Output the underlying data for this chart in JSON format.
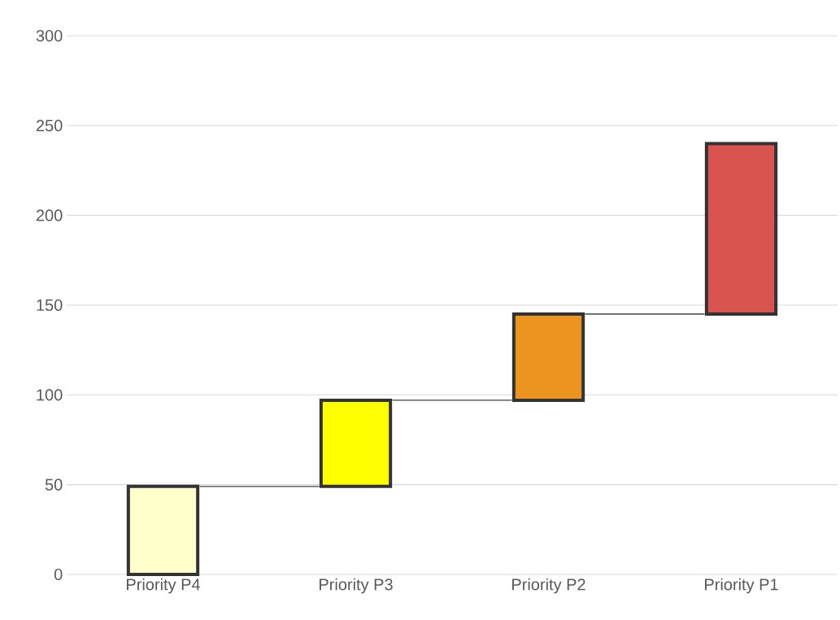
{
  "chart_data": {
    "type": "bar",
    "categories": [
      "Priority P4",
      "Priority P3",
      "Priority P2",
      "Priority P1"
    ],
    "values": [
      49,
      48,
      48,
      95
    ],
    "base": [
      0,
      49,
      97,
      145
    ],
    "colors": [
      "#ffffcc",
      "#ffff00",
      "#eb9520",
      "#d9534f"
    ],
    "ylim": [
      0,
      300
    ],
    "yticks": [
      0,
      50,
      100,
      150,
      200,
      250,
      300
    ],
    "grid": "y"
  }
}
